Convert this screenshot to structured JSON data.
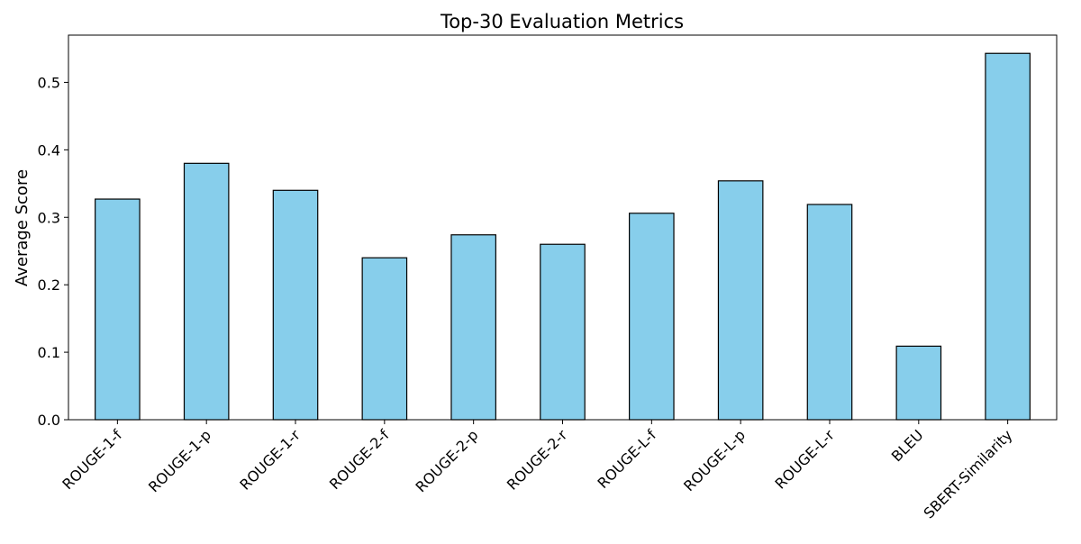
{
  "chart_data": {
    "type": "bar",
    "title": "Top-30 Evaluation Metrics",
    "xlabel": "",
    "ylabel": "Average Score",
    "categories": [
      "ROUGE-1-f",
      "ROUGE-1-p",
      "ROUGE-1-r",
      "ROUGE-2-f",
      "ROUGE-2-p",
      "ROUGE-2-r",
      "ROUGE-L-f",
      "ROUGE-L-p",
      "ROUGE-L-r",
      "BLEU",
      "SBERT-Similarity"
    ],
    "values": [
      0.327,
      0.38,
      0.34,
      0.24,
      0.274,
      0.26,
      0.306,
      0.354,
      0.319,
      0.109,
      0.543
    ],
    "yticks": [
      0.0,
      0.1,
      0.2,
      0.3,
      0.4,
      0.5
    ],
    "ytick_labels": [
      "0.0",
      "0.1",
      "0.2",
      "0.3",
      "0.4",
      "0.5"
    ],
    "ylim": [
      0,
      0.57
    ],
    "grid": false,
    "legend": false,
    "bar_color": "#87CEEB",
    "edge_color": "#000000"
  }
}
